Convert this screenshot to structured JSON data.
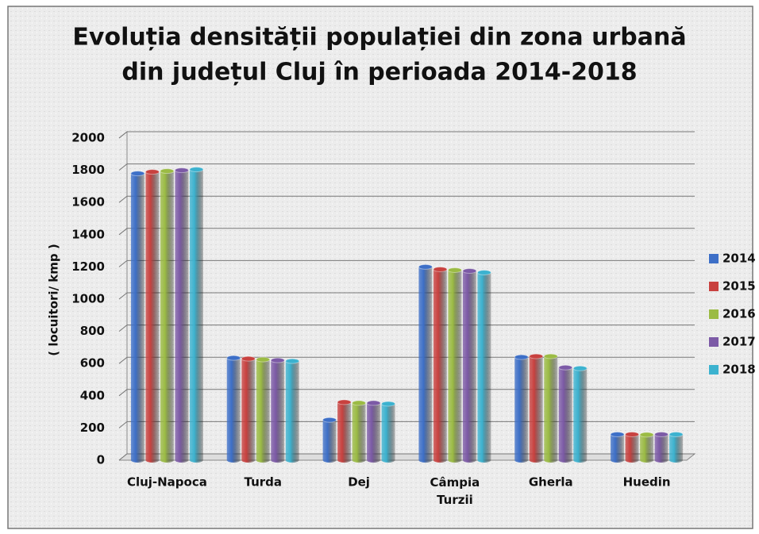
{
  "chart_data": {
    "type": "bar",
    "title": [
      "Evoluția densității populației din zona urbană",
      "din județul Cluj în perioada 2014-2018"
    ],
    "y_label": "( locuitori/ kmp )",
    "categories": [
      "Cluj-Napoca",
      "Turda",
      "Dej",
      "Câmpia Turzii",
      "Gherla",
      "Huedin"
    ],
    "series": [
      {
        "name": "2014",
        "color": "#3d6fc7",
        "values": [
          1780,
          635,
          250,
          1200,
          640,
          160
        ]
      },
      {
        "name": "2015",
        "color": "#c8413f",
        "values": [
          1790,
          630,
          360,
          1185,
          645,
          160
        ]
      },
      {
        "name": "2016",
        "color": "#9bbb44",
        "values": [
          1795,
          625,
          355,
          1180,
          645,
          158
        ]
      },
      {
        "name": "2017",
        "color": "#7c5aa6",
        "values": [
          1800,
          620,
          355,
          1175,
          575,
          160
        ]
      },
      {
        "name": "2018",
        "color": "#3cb2cf",
        "values": [
          1805,
          615,
          350,
          1165,
          570,
          160
        ]
      }
    ],
    "ylim": [
      0,
      2000
    ],
    "yticks": [
      0,
      200,
      400,
      600,
      800,
      1000,
      1200,
      1400,
      1600,
      1800,
      2000
    ],
    "grid": true,
    "legend": "right"
  }
}
